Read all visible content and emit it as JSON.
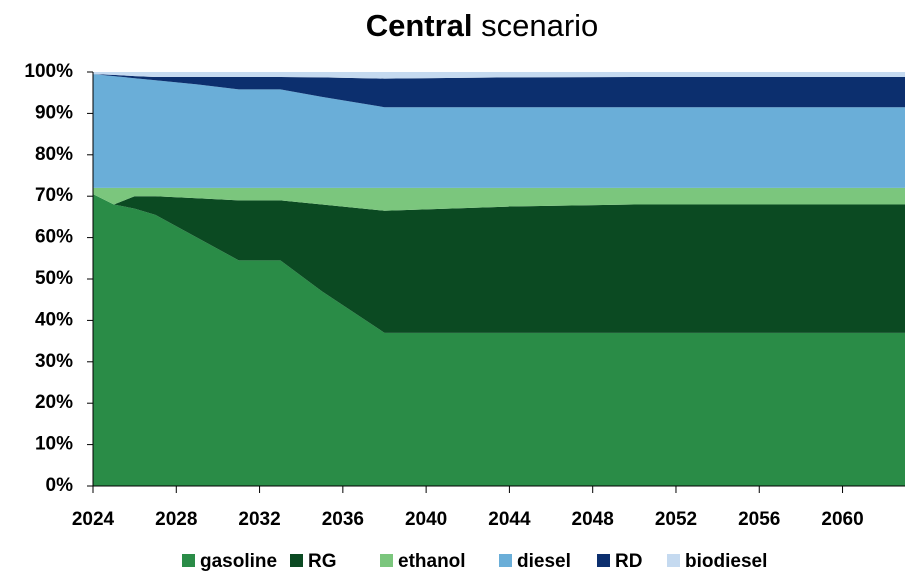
{
  "chart_data": {
    "type": "stacked_area",
    "title": [
      "Central",
      "scenario"
    ],
    "x": [
      2024,
      2025,
      2026,
      2027,
      2029,
      2031,
      2033,
      2035,
      2038,
      2044,
      2050,
      2063
    ],
    "series": [
      {
        "name": "gasoline",
        "color": "#2a8c47",
        "values": [
          70.5,
          68,
          67,
          65.5,
          60,
          54.5,
          54.5,
          47,
          37,
          37,
          37,
          37
        ]
      },
      {
        "name": "RG",
        "color": "#0b4a22",
        "values": [
          0,
          0,
          3,
          4.5,
          9.5,
          14.5,
          14.5,
          21,
          29.5,
          30.5,
          31,
          31
        ]
      },
      {
        "name": "ethanol",
        "color": "#7bc67d",
        "values": [
          1.5,
          4,
          2,
          2,
          2.5,
          3,
          3,
          4,
          5.5,
          4.5,
          4,
          4
        ]
      },
      {
        "name": "diesel",
        "color": "#6aaed8",
        "values": [
          27.5,
          27,
          26.5,
          26,
          25,
          23.8,
          23.8,
          22,
          19.5,
          19.5,
          19.5,
          19.5
        ]
      },
      {
        "name": "RD",
        "color": "#0c2f6e",
        "values": [
          0,
          0.3,
          0.5,
          0.8,
          1.8,
          3,
          3,
          4.7,
          6.9,
          7.2,
          7.3,
          7.3
        ]
      },
      {
        "name": "biodiesel",
        "color": "#c5daf0",
        "values": [
          0.5,
          0.7,
          1,
          1.2,
          1.2,
          1.2,
          1.2,
          1.3,
          1.6,
          1.3,
          1.2,
          1.2
        ]
      }
    ],
    "xlim": [
      2024,
      2063
    ],
    "xticks": [
      2024,
      2028,
      2032,
      2036,
      2040,
      2044,
      2048,
      2052,
      2056,
      2060
    ],
    "ylim": [
      0,
      100
    ],
    "yticks": [
      {
        "value": 0,
        "label": "0%"
      },
      {
        "value": 10,
        "label": "10%"
      },
      {
        "value": 20,
        "label": "20%"
      },
      {
        "value": 30,
        "label": "30%"
      },
      {
        "value": 40,
        "label": "40%"
      },
      {
        "value": 50,
        "label": "50%"
      },
      {
        "value": 60,
        "label": "60%"
      },
      {
        "value": 70,
        "label": "70%"
      },
      {
        "value": 80,
        "label": "80%"
      },
      {
        "value": 90,
        "label": "90%"
      },
      {
        "value": 100,
        "label": "100%"
      }
    ],
    "legend": "bottom"
  }
}
